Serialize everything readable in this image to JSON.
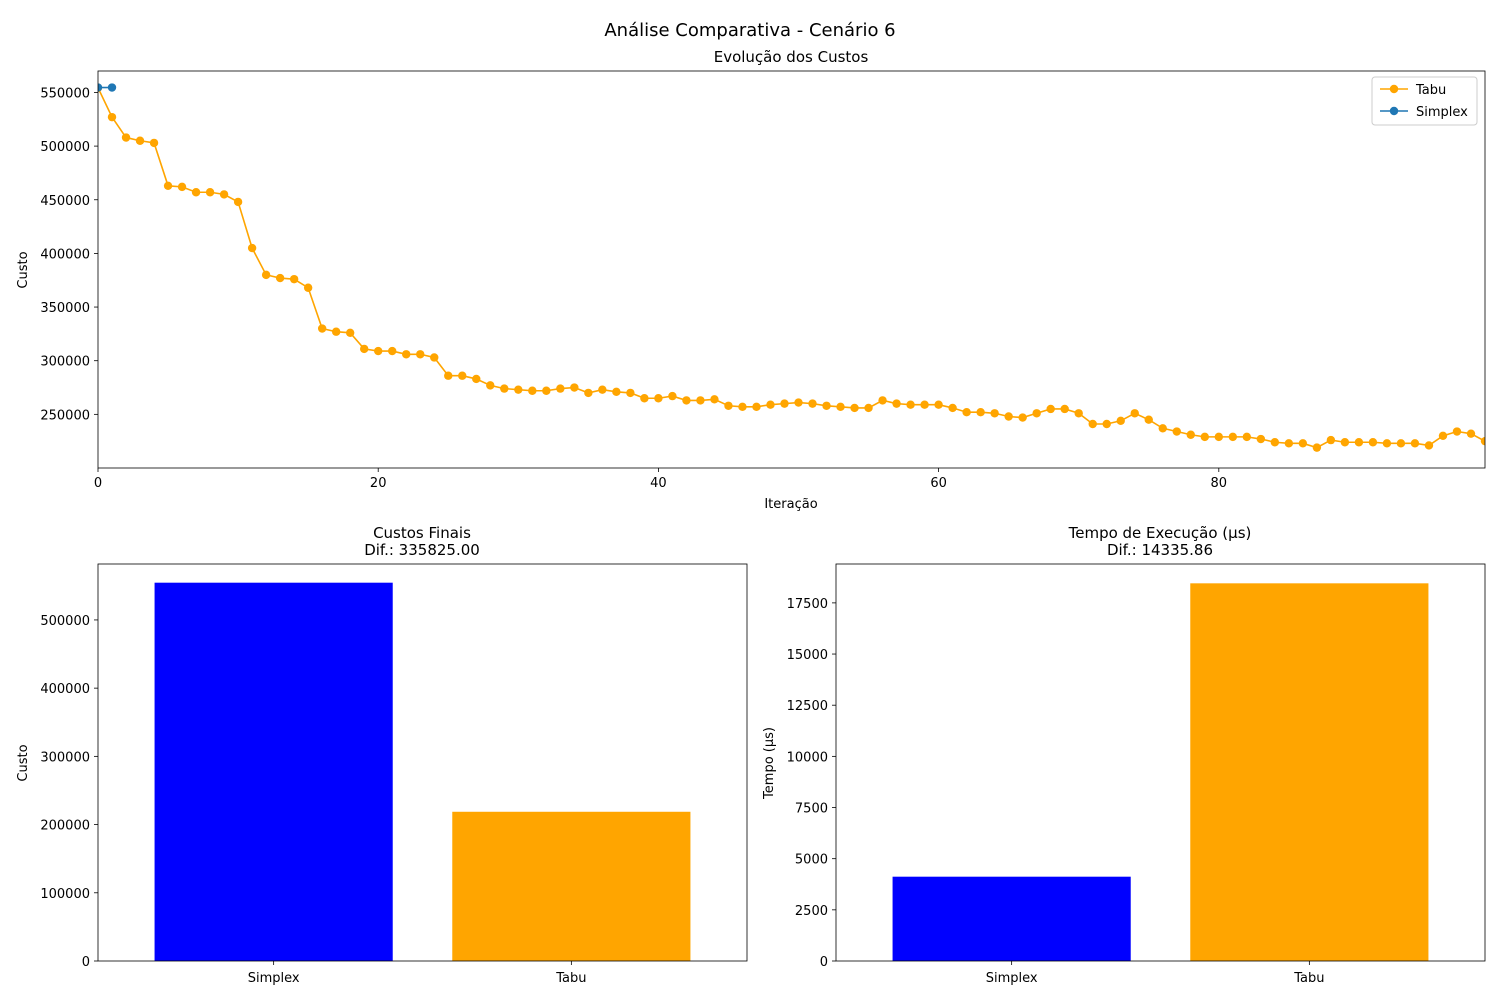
{
  "figure": {
    "suptitle": "Análise Comparativa - Cenário 6"
  },
  "chart_data": [
    {
      "type": "line",
      "title": "Evolução dos Custos",
      "xlabel": "Iteração",
      "ylabel": "Custo",
      "xlim": [
        0,
        99
      ],
      "ylim": [
        200000,
        570000
      ],
      "xticks": [
        0,
        20,
        40,
        60,
        80
      ],
      "yticks": [
        250000,
        300000,
        350000,
        400000,
        450000,
        500000,
        550000
      ],
      "legend_position": "top-right",
      "marker": "circle",
      "series": [
        {
          "name": "Tabu",
          "color": "#ffa500",
          "x_start": 0,
          "values": [
            554400,
            527000,
            508000,
            505000,
            503000,
            463000,
            462000,
            457000,
            457000,
            455000,
            448000,
            405000,
            380000,
            377000,
            376000,
            368000,
            330000,
            327000,
            326000,
            311000,
            309000,
            309000,
            306000,
            306000,
            303000,
            286000,
            286000,
            283000,
            277000,
            274000,
            273000,
            272000,
            272000,
            274000,
            275000,
            270000,
            273000,
            271000,
            270000,
            265000,
            265000,
            267000,
            263000,
            263000,
            264000,
            258000,
            257000,
            257000,
            259000,
            260000,
            261000,
            260000,
            258000,
            257000,
            256000,
            256000,
            263000,
            260000,
            259000,
            259000,
            259000,
            256000,
            252000,
            252000,
            251000,
            248000,
            247000,
            251000,
            255000,
            255000,
            251000,
            241000,
            241000,
            244000,
            251000,
            245000,
            237000,
            234000,
            231000,
            229000,
            229000,
            229000,
            229000,
            227000,
            224000,
            223000,
            223000,
            219000,
            226000,
            224000,
            224000,
            224000,
            223000,
            223000,
            223000,
            221000,
            230000,
            234000,
            232000,
            225000,
            225000
          ]
        },
        {
          "name": "Simplex",
          "color": "#1f77b4",
          "x_start": 0,
          "values": [
            554600,
            554600
          ]
        }
      ]
    },
    {
      "type": "bar",
      "title": "Custos Finais",
      "subtitle": "Dif.: 335825.00",
      "xlabel": "",
      "ylabel": "Custo",
      "ylim": [
        0,
        582000
      ],
      "yticks": [
        0,
        100000,
        200000,
        300000,
        400000,
        500000
      ],
      "categories": [
        "Simplex",
        "Tabu"
      ],
      "values": [
        554600,
        218775
      ],
      "colors": [
        "#0000ff",
        "#ffa500"
      ]
    },
    {
      "type": "bar",
      "title": "Tempo de Execução (μs)",
      "subtitle": "Dif.: 14335.86",
      "xlabel": "",
      "ylabel": "Tempo (μs)",
      "ylim": [
        0,
        19400
      ],
      "yticks": [
        0,
        2500,
        5000,
        7500,
        10000,
        12500,
        15000,
        17500
      ],
      "categories": [
        "Simplex",
        "Tabu"
      ],
      "values": [
        4120,
        18455.86
      ],
      "colors": [
        "#0000ff",
        "#ffa500"
      ]
    }
  ]
}
